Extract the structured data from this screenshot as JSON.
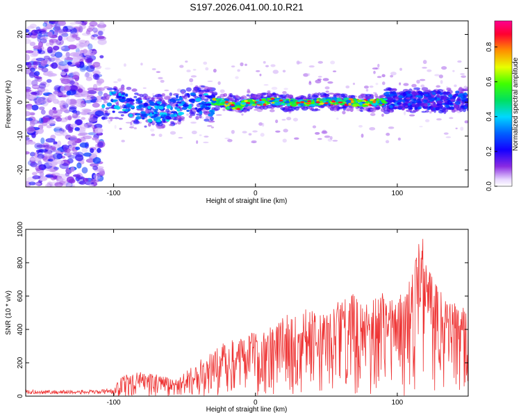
{
  "figure_title": "S197.2026.041.00.10.R21",
  "colors": {
    "snr_line": "#ee3333",
    "frame": "#000000",
    "background": "#ffffff"
  },
  "chart_data": [
    {
      "id": "spectrogram",
      "type": "heatmap",
      "title": "S197.2026.041.00.10.R21",
      "xlabel": "Height of straight line (km)",
      "ylabel": "Frequency (Hz)",
      "xlim": [
        -162,
        150
      ],
      "ylim": [
        -25,
        24
      ],
      "x_ticks": [
        -100,
        0,
        100
      ],
      "y_ticks": [
        -20,
        -10,
        0,
        10,
        20
      ],
      "colorbar": {
        "label": "Normalized spectral amplitude",
        "range": [
          0,
          0.95
        ],
        "ticks": [
          0.0,
          0.2,
          0.4,
          0.6,
          0.8
        ],
        "colormap": "rainbow (purple to red), low values transparent"
      },
      "features": [
        {
          "region_km": [
            -162,
            -108
          ],
          "description": "broadband purple noise across all frequencies"
        },
        {
          "region_km": [
            -108,
            -30
          ],
          "freq_hz": [
            -5,
            3
          ],
          "amplitude": "0.2-0.4 blue/cyan patches"
        },
        {
          "region_km": [
            -30,
            92
          ],
          "freq_hz": [
            -2,
            1
          ],
          "amplitude": "0.5-0.95 continuous band near 0 Hz"
        },
        {
          "region_km": [
            92,
            150
          ],
          "freq_hz": [
            -3,
            4
          ],
          "amplitude": "0.1-0.3 purple/blue band"
        }
      ]
    },
    {
      "id": "snr",
      "type": "line",
      "xlabel": "Height of straight line (km)",
      "ylabel": "SNR (10 * v/v)",
      "xlim": [
        -162,
        150
      ],
      "ylim": [
        0,
        1000
      ],
      "x_ticks": [
        -100,
        0,
        100
      ],
      "y_ticks": [
        0,
        200,
        400,
        600,
        800,
        1000
      ],
      "envelope_x": [
        -162,
        -110,
        -100,
        -95,
        -85,
        -70,
        -55,
        -45,
        -30,
        -20,
        -10,
        0,
        10,
        20,
        30,
        40,
        50,
        60,
        70,
        80,
        90,
        100,
        110,
        117,
        125,
        135,
        150
      ],
      "envelope_y": [
        25,
        25,
        40,
        120,
        150,
        130,
        100,
        180,
        280,
        330,
        380,
        380,
        420,
        500,
        520,
        560,
        480,
        600,
        620,
        560,
        640,
        580,
        720,
        1000,
        700,
        620,
        520
      ]
    }
  ]
}
